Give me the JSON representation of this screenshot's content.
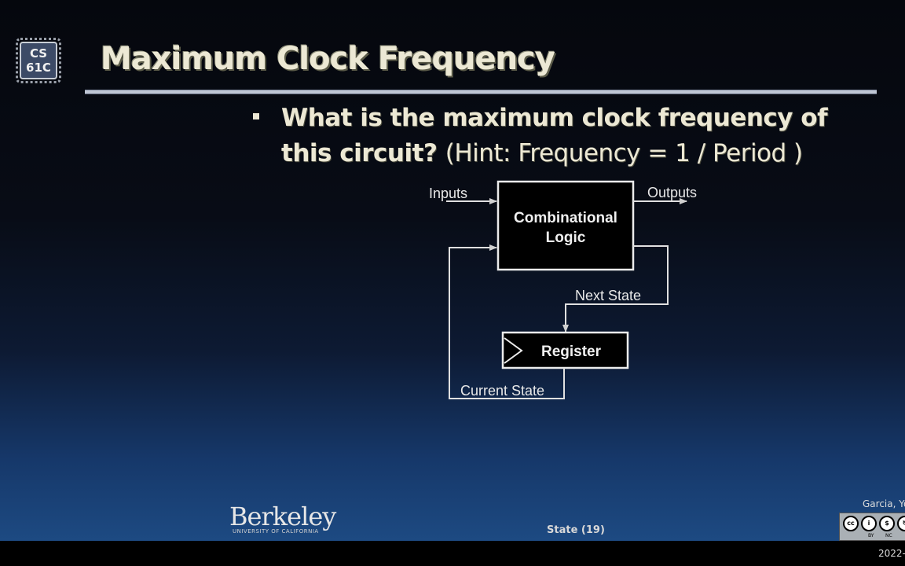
{
  "logo": {
    "line1": "CS",
    "line2": "61C"
  },
  "title": "Maximum Clock Frequency",
  "bullet": {
    "question": "What is the maximum clock frequency of this circuit?",
    "hint": "(Hint: Frequency = 1 / Period )"
  },
  "diagram": {
    "inputs_label": "Inputs",
    "outputs_label": "Outputs",
    "comb_logic_line1": "Combinational",
    "comb_logic_line2": "Logic",
    "next_state_label": "Next State",
    "register_label": "Register",
    "current_state_label": "Current State"
  },
  "footer": {
    "university": "Berkeley",
    "university_sub": "UNIVERSITY OF CALIFORNIA",
    "page": "State (19)",
    "authors": "Garcia, Yo",
    "license_cc": "cc",
    "license_by": "BY",
    "license_nc": "NC",
    "year": "2022-"
  },
  "colors": {
    "title": "#ece8d4",
    "diagram_line": "#e8e8e8"
  }
}
